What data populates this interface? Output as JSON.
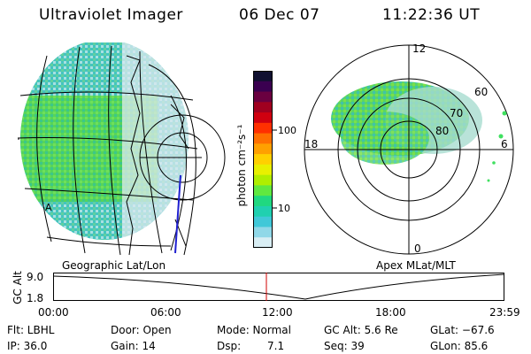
{
  "header": {
    "instrument": "Ultraviolet Imager",
    "date": "06 Dec 07",
    "time": "11:22:36 UT"
  },
  "left_panel": {
    "caption": "Geographic Lat/Lon",
    "marker": "A"
  },
  "colorbar": {
    "unit_label": "photon cm⁻²s⁻¹",
    "ticks": [
      "100",
      "10"
    ],
    "colors": [
      "#101030",
      "#3a0050",
      "#6a0040",
      "#a00020",
      "#d00010",
      "#ff3000",
      "#ff7000",
      "#ffa000",
      "#ffd000",
      "#e8f000",
      "#b0ee00",
      "#60e840",
      "#20d880",
      "#20d0b0",
      "#40c8d8",
      "#90d8e8",
      "#d8eef4"
    ]
  },
  "right_panel": {
    "caption": "Apex MLat/MLT",
    "mlt_labels": {
      "top": "12",
      "bottom": "0",
      "left": "18",
      "right": "6"
    },
    "lat_labels": [
      "60",
      "70",
      "80"
    ]
  },
  "altitude_plot": {
    "ylabel": "GC Alt",
    "yticks": [
      "9.0",
      "1.8"
    ],
    "xticks": [
      "00:00",
      "06:00",
      "12:00",
      "18:00",
      "23:59"
    ],
    "current_time_marker": "11:22:36"
  },
  "footer": {
    "flt": "Flt: LBHL",
    "ip": "IP: 36.0",
    "door": "Door: Open",
    "gain": "Gain: 14",
    "mode": "Mode: Normal",
    "dsp_label": "Dsp:",
    "dsp_value": "7.1",
    "gc_alt": "GC Alt: 5.6 Re",
    "seq": "Seq: 39",
    "glat": "GLat: −67.6",
    "glon": "GLon: 85.6"
  },
  "colors": {
    "aurora_green": "#5ad85a",
    "aurora_teal": "#40c8b8",
    "marker_red": "#d00000"
  }
}
